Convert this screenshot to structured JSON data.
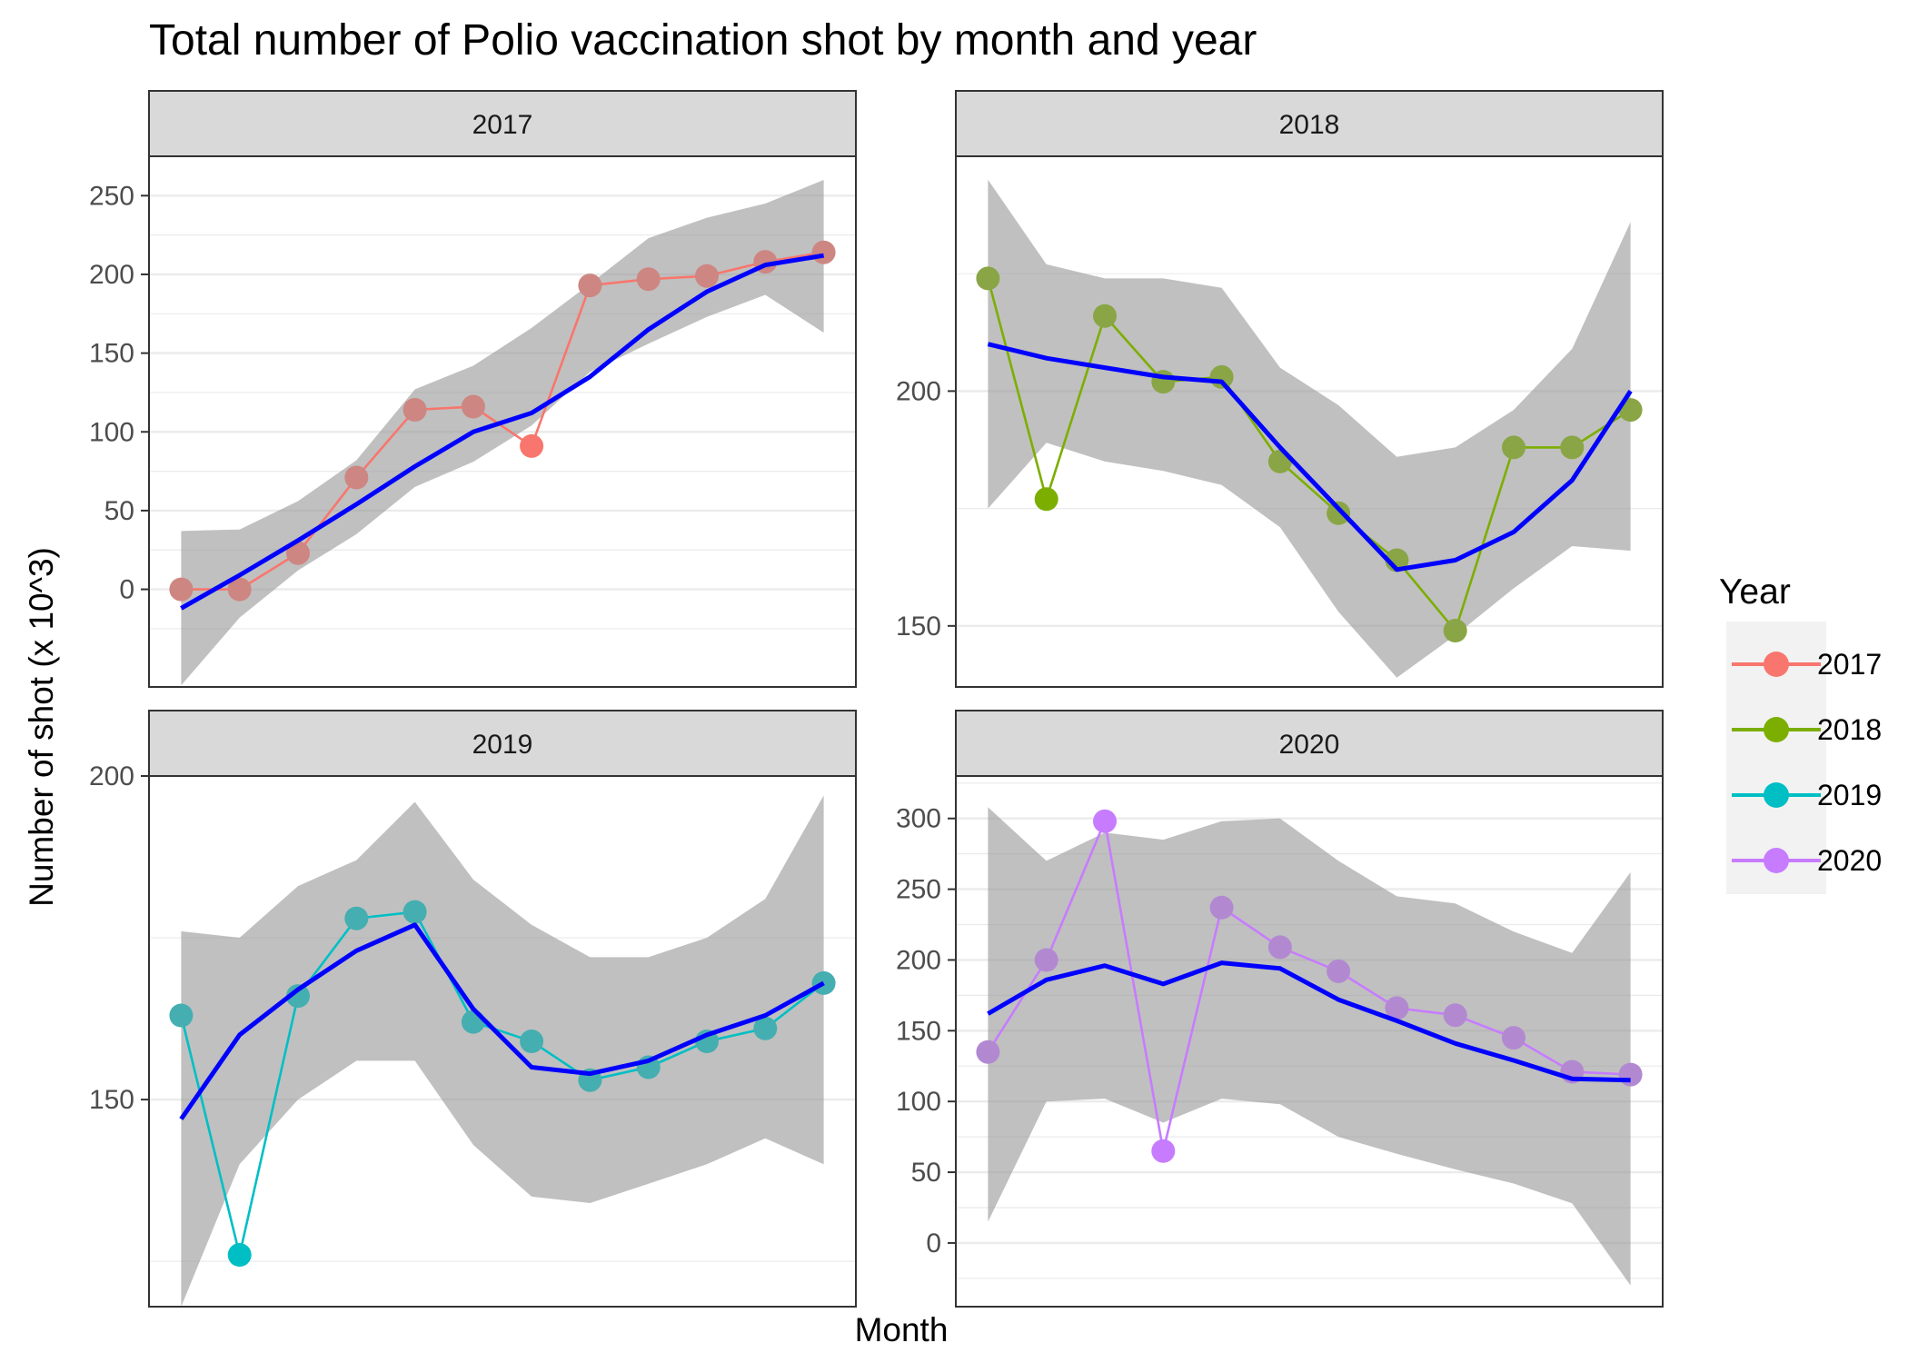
{
  "chart_data": {
    "type": "line",
    "title": "Total number of Polio vaccination shot by month and year",
    "xlabel": "Month",
    "ylabel": "Number of shot (x 10^3)",
    "legend": {
      "title": "Year",
      "placement": "right",
      "entries": [
        "2017",
        "2018",
        "2019",
        "2020"
      ]
    },
    "series_colors": {
      "2017": "#F8766D",
      "2018": "#7CAE00",
      "2019": "#00BFC4",
      "2020": "#C77CFF"
    },
    "smooth_color": "#0000FF",
    "band_color": "#999999",
    "grid": true,
    "x": [
      1,
      2,
      3,
      4,
      5,
      6,
      7,
      8,
      9,
      10,
      11,
      12
    ],
    "facets": [
      {
        "name": "2017",
        "ylim": [
          -62,
          275
        ],
        "yticks": [
          0,
          50,
          100,
          150,
          200,
          250
        ],
        "values": [
          0,
          0,
          23,
          71,
          114,
          116,
          91,
          193,
          197,
          199,
          208,
          214
        ],
        "smooth": [
          -12,
          9,
          31,
          54,
          78,
          100,
          112,
          135,
          165,
          189,
          206,
          212
        ],
        "band_upper": [
          37,
          38,
          56,
          82,
          127,
          142,
          166,
          194,
          223,
          236,
          245,
          260
        ],
        "band_lower": [
          -61,
          -18,
          12,
          35,
          65,
          81,
          104,
          138,
          156,
          173,
          187,
          163
        ]
      },
      {
        "name": "2018",
        "ylim": [
          137,
          250
        ],
        "yticks": [
          150,
          200
        ],
        "values": [
          224,
          177,
          216,
          202,
          203,
          185,
          174,
          164,
          149,
          188,
          188,
          196
        ],
        "smooth": [
          210,
          207,
          205,
          203,
          202,
          188,
          175,
          162,
          164,
          170,
          181,
          200
        ],
        "band_upper": [
          245,
          227,
          224,
          224,
          222,
          205,
          197,
          186,
          188,
          196,
          209,
          236
        ],
        "band_lower": [
          175,
          189,
          185,
          183,
          180,
          171,
          153,
          139,
          148,
          158,
          167,
          166
        ]
      },
      {
        "name": "2019",
        "ylim": [
          118,
          200
        ],
        "yticks": [
          150,
          200
        ],
        "values": [
          163,
          126,
          166,
          178,
          179,
          162,
          159,
          153,
          155,
          159,
          161,
          168
        ],
        "smooth": [
          147,
          160,
          167,
          173,
          177,
          164,
          155,
          154,
          156,
          160,
          163,
          168
        ],
        "band_upper": [
          176,
          175,
          183,
          187,
          196,
          184,
          177,
          172,
          172,
          175,
          181,
          197
        ],
        "band_lower": [
          118,
          140,
          150,
          156,
          156,
          143,
          135,
          134,
          137,
          140,
          144,
          140
        ]
      },
      {
        "name": "2020",
        "ylim": [
          -45,
          330
        ],
        "yticks": [
          0,
          50,
          100,
          150,
          200,
          250,
          300
        ],
        "values": [
          135,
          200,
          298,
          65,
          237,
          209,
          192,
          166,
          161,
          145,
          121,
          119
        ],
        "smooth": [
          162,
          186,
          196,
          183,
          198,
          194,
          172,
          157,
          141,
          129,
          116,
          115
        ],
        "band_upper": [
          308,
          270,
          290,
          285,
          298,
          300,
          270,
          245,
          240,
          220,
          205,
          262
        ],
        "band_lower": [
          15,
          100,
          102,
          85,
          102,
          98,
          75,
          63,
          52,
          42,
          28,
          -30
        ]
      }
    ]
  }
}
